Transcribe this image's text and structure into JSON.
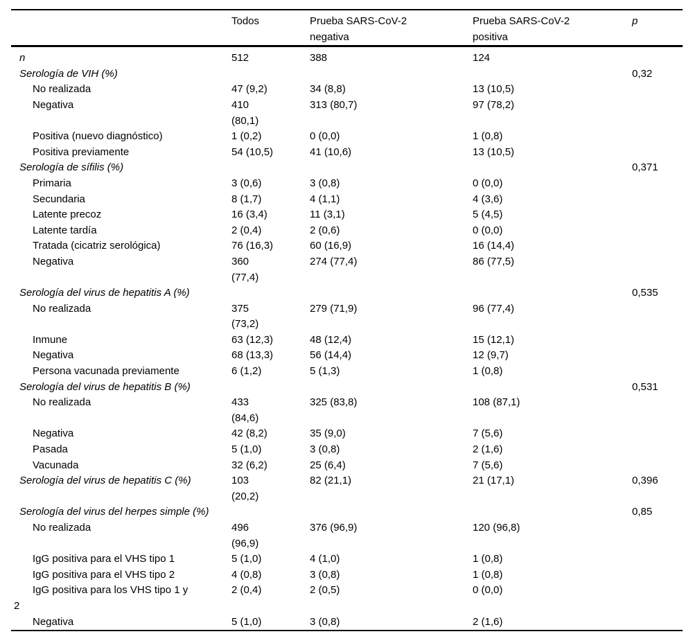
{
  "colors": {
    "background": "#ffffff",
    "text": "#000000",
    "rule": "#000000"
  },
  "table": {
    "header": {
      "label": "",
      "todos": "Todos",
      "negativa": "Prueba SARS-CoV-2\nnegativa",
      "positiva": "Prueba SARS-CoV-2\npositiva",
      "p": "p"
    },
    "rows": [
      {
        "label": "n",
        "italic": true,
        "indent": 0,
        "todos": "512",
        "negativa": "388",
        "positiva": "124",
        "p": ""
      },
      {
        "label": "Serología de VIH (%)",
        "italic": true,
        "indent": 0,
        "todos": "",
        "negativa": "",
        "positiva": "",
        "p": "0,32"
      },
      {
        "label": "No realizada",
        "italic": false,
        "indent": 1,
        "todos": "47 (9,2)",
        "negativa": "34 (8,8)",
        "positiva": "13 (10,5)",
        "p": ""
      },
      {
        "label": "Negativa",
        "italic": false,
        "indent": 1,
        "todos": "410\n(80,1)",
        "negativa": "313 (80,7)",
        "positiva": "97 (78,2)",
        "p": ""
      },
      {
        "label": "Positiva (nuevo diagnóstico)",
        "italic": false,
        "indent": 1,
        "todos": "1 (0,2)",
        "negativa": "0 (0,0)",
        "positiva": "1 (0,8)",
        "p": ""
      },
      {
        "label": "Positiva previamente",
        "italic": false,
        "indent": 1,
        "todos": "54 (10,5)",
        "negativa": "41 (10,6)",
        "positiva": "13 (10,5)",
        "p": ""
      },
      {
        "label": "Serología de sífilis (%)",
        "italic": true,
        "indent": 0,
        "todos": "",
        "negativa": "",
        "positiva": "",
        "p": "0,371"
      },
      {
        "label": "Primaria",
        "italic": false,
        "indent": 1,
        "todos": "3 (0,6)",
        "negativa": "3 (0,8)",
        "positiva": "0 (0,0)",
        "p": ""
      },
      {
        "label": "Secundaria",
        "italic": false,
        "indent": 1,
        "todos": "8 (1,7)",
        "negativa": "4 (1,1)",
        "positiva": "4 (3,6)",
        "p": ""
      },
      {
        "label": "Latente precoz",
        "italic": false,
        "indent": 1,
        "todos": "16 (3,4)",
        "negativa": "11 (3,1)",
        "positiva": "5 (4,5)",
        "p": ""
      },
      {
        "label": "Latente tardía",
        "italic": false,
        "indent": 1,
        "todos": "2 (0,4)",
        "negativa": "2 (0,6)",
        "positiva": "0 (0,0)",
        "p": ""
      },
      {
        "label": "Tratada (cicatriz serológica)",
        "italic": false,
        "indent": 1,
        "todos": "76 (16,3)",
        "negativa": "60 (16,9)",
        "positiva": "16 (14,4)",
        "p": ""
      },
      {
        "label": "Negativa",
        "italic": false,
        "indent": 1,
        "todos": "360\n(77,4)",
        "negativa": "274 (77,4)",
        "positiva": "86 (77,5)",
        "p": ""
      },
      {
        "label": "Serología del virus de hepatitis A (%)",
        "italic": true,
        "indent": 0,
        "todos": "",
        "negativa": "",
        "positiva": "",
        "p": "0,535"
      },
      {
        "label": "No realizada",
        "italic": false,
        "indent": 1,
        "todos": "375\n(73,2)",
        "negativa": "279 (71,9)",
        "positiva": "96 (77,4)",
        "p": ""
      },
      {
        "label": "Inmune",
        "italic": false,
        "indent": 1,
        "todos": "63 (12,3)",
        "negativa": "48 (12,4)",
        "positiva": "15 (12,1)",
        "p": ""
      },
      {
        "label": "Negativa",
        "italic": false,
        "indent": 1,
        "todos": "68 (13,3)",
        "negativa": "56 (14,4)",
        "positiva": "12 (9,7)",
        "p": ""
      },
      {
        "label": "Persona vacunada previamente",
        "italic": false,
        "indent": 1,
        "todos": "6 (1,2)",
        "negativa": "5 (1,3)",
        "positiva": "1 (0,8)",
        "p": ""
      },
      {
        "label": "Serología del virus de hepatitis B (%)",
        "italic": true,
        "indent": 0,
        "todos": "",
        "negativa": "",
        "positiva": "",
        "p": "0,531"
      },
      {
        "label": "No realizada",
        "italic": false,
        "indent": 1,
        "todos": "433\n(84,6)",
        "negativa": "325 (83,8)",
        "positiva": "108 (87,1)",
        "p": ""
      },
      {
        "label": "Negativa",
        "italic": false,
        "indent": 1,
        "todos": "42 (8,2)",
        "negativa": "35 (9,0)",
        "positiva": "7 (5,6)",
        "p": ""
      },
      {
        "label": "Pasada",
        "italic": false,
        "indent": 1,
        "todos": "5 (1,0)",
        "negativa": "3 (0,8)",
        "positiva": "2 (1,6)",
        "p": ""
      },
      {
        "label": "Vacunada",
        "italic": false,
        "indent": 1,
        "todos": "32 (6,2)",
        "negativa": "25 (6,4)",
        "positiva": "7 (5,6)",
        "p": ""
      },
      {
        "label": "Serología del virus de hepatitis C (%)",
        "italic": true,
        "indent": 0,
        "todos": "103\n(20,2)",
        "negativa": "82 (21,1)",
        "positiva": "21 (17,1)",
        "p": "0,396"
      },
      {
        "label": "Serología del virus del herpes simple (%)",
        "italic": true,
        "indent": 0,
        "todos": "",
        "negativa": "",
        "positiva": "",
        "p": "0,85"
      },
      {
        "label": "No realizada",
        "italic": false,
        "indent": 1,
        "todos": "496\n(96,9)",
        "negativa": "376 (96,9)",
        "positiva": "120 (96,8)",
        "p": ""
      },
      {
        "label": "IgG positiva para el VHS tipo 1",
        "italic": false,
        "indent": 1,
        "todos": "5 (1,0)",
        "negativa": "4 (1,0)",
        "positiva": "1 (0,8)",
        "p": ""
      },
      {
        "label": "IgG positiva para el VHS tipo 2",
        "italic": false,
        "indent": 1,
        "todos": "4 (0,8)",
        "negativa": "3 (0,8)",
        "positiva": "1 (0,8)",
        "p": ""
      },
      {
        "label": "IgG positiva para los VHS tipo 1 y\n2",
        "italic": false,
        "indent": 1,
        "hang": true,
        "todos": "2 (0,4)",
        "negativa": "2 (0,5)",
        "positiva": "0 (0,0)",
        "p": ""
      },
      {
        "label": "Negativa",
        "italic": false,
        "indent": 1,
        "todos": "5 (1,0)",
        "negativa": "3 (0,8)",
        "positiva": "2 (1,6)",
        "p": ""
      }
    ]
  }
}
